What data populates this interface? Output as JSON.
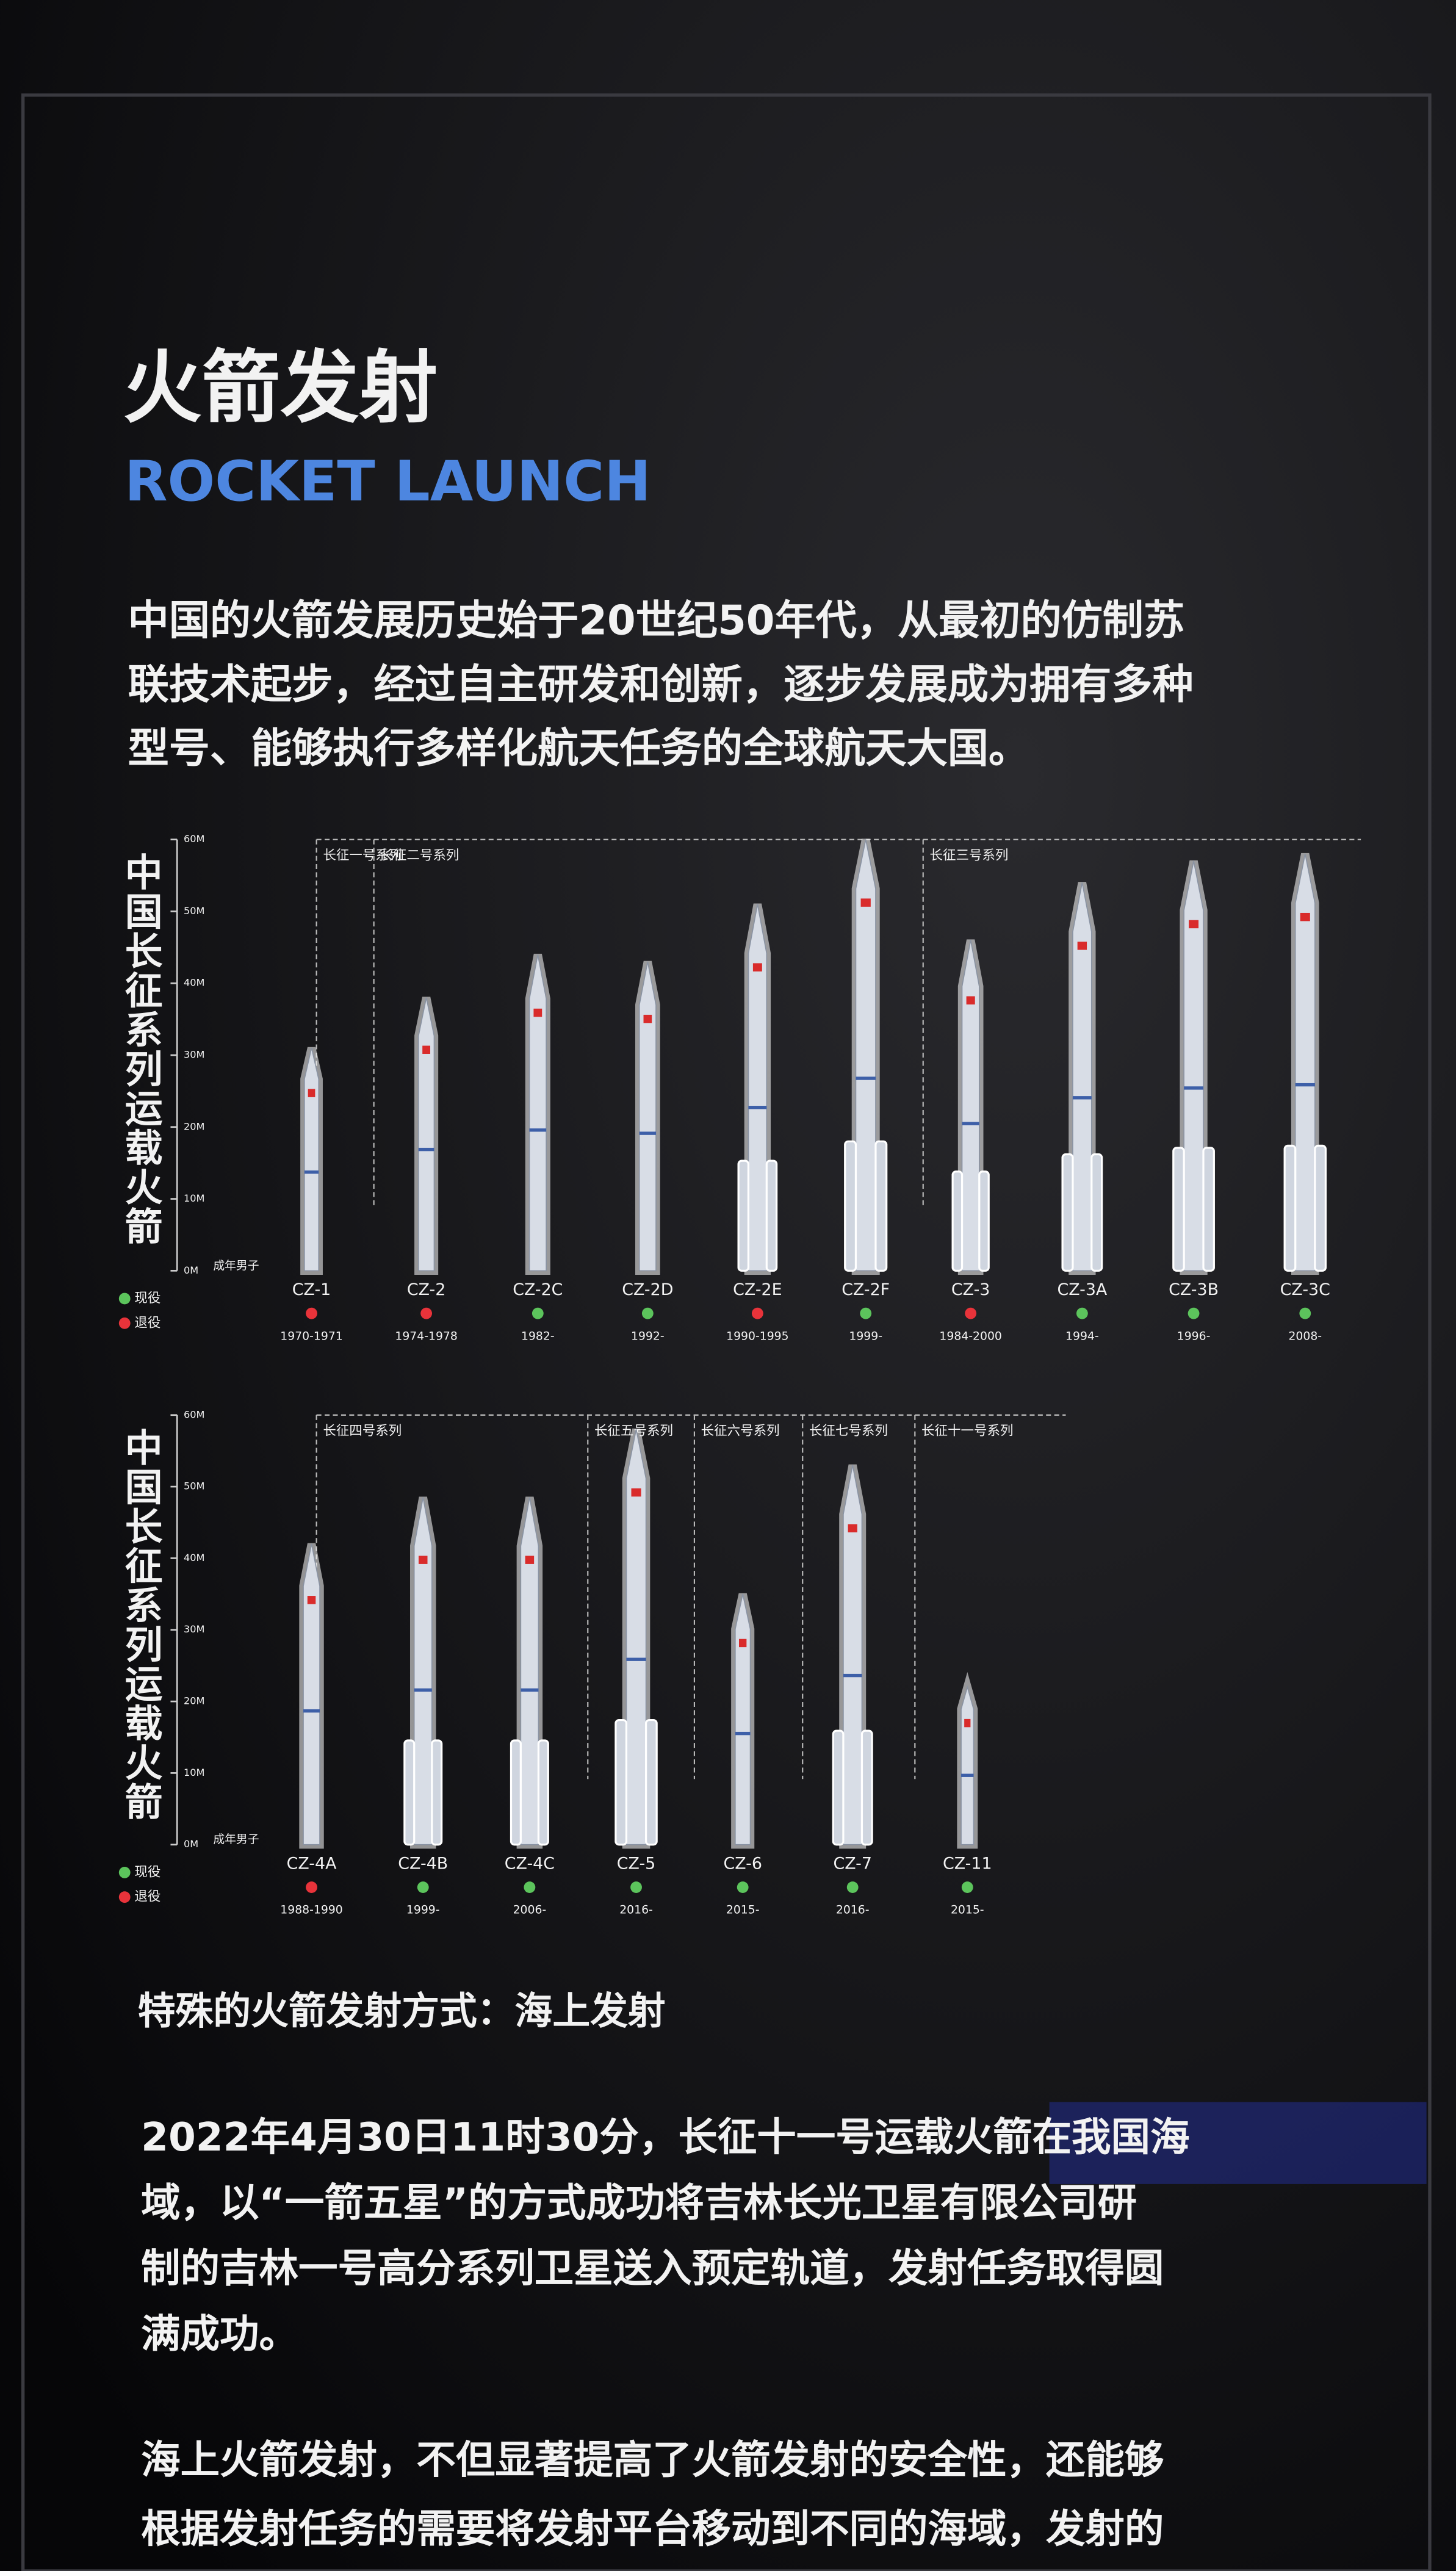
{
  "header": {
    "title": "火箭发射",
    "subtitle": "ROCKET LAUNCH"
  },
  "intro": [
    "中国的火箭发展历史始于20世纪50年代，从最初的仿制苏",
    "联技术起步，经过自主研发和创新，逐步发展成为拥有多种",
    "型号、能够执行多样化航天任务的全球航天大国。"
  ],
  "chart_data": [
    {
      "type": "bar",
      "axis_title": "中国长征系列运载火箭",
      "human_label": "成年男子",
      "legend": [
        {
          "label": "现役",
          "color": "#5cc45c"
        },
        {
          "label": "退役",
          "color": "#e8333a"
        }
      ],
      "ylim": [
        0,
        60
      ],
      "yticks": [
        {
          "value": 0,
          "label": "0M"
        },
        {
          "value": 10,
          "label": "10M"
        },
        {
          "value": 20,
          "label": "20M"
        },
        {
          "value": 30,
          "label": "30M"
        },
        {
          "value": 40,
          "label": "40M"
        },
        {
          "value": 50,
          "label": "50M"
        },
        {
          "value": 60,
          "label": "60M"
        }
      ],
      "groups": [
        "长征一号系列",
        "长征二号系列",
        "长征三号系列"
      ],
      "categories": [
        "CZ-1",
        "CZ-2",
        "CZ-2C",
        "CZ-2D",
        "CZ-2E",
        "CZ-2F",
        "CZ-3",
        "CZ-3A",
        "CZ-3B",
        "CZ-3C"
      ],
      "values": [
        31,
        38,
        44,
        43,
        51,
        60,
        46,
        54,
        57,
        58
      ],
      "years": [
        "1970-1971",
        "1974-1978",
        "1982-",
        "1992-",
        "1990-1995",
        "1999-",
        "1984-2000",
        "1994-",
        "1996-",
        "2008-"
      ],
      "dot_colors": [
        "#e8333a",
        "#e8333a",
        "#5cc45c",
        "#5cc45c",
        "#e8333a",
        "#5cc45c",
        "#e8333a",
        "#5cc45c",
        "#5cc45c",
        "#5cc45c"
      ]
    },
    {
      "type": "bar",
      "axis_title": "中国长征系列运载火箭",
      "human_label": "成年男子",
      "legend": [
        {
          "label": "现役",
          "color": "#5cc45c"
        },
        {
          "label": "退役",
          "color": "#e8333a"
        }
      ],
      "ylim": [
        0,
        60
      ],
      "yticks": [
        {
          "value": 0,
          "label": "0M"
        },
        {
          "value": 10,
          "label": "10M"
        },
        {
          "value": 20,
          "label": "20M"
        },
        {
          "value": 30,
          "label": "30M"
        },
        {
          "value": 40,
          "label": "40M"
        },
        {
          "value": 50,
          "label": "50M"
        },
        {
          "value": 60,
          "label": "60M"
        }
      ],
      "groups": [
        "长征四号系列",
        "长征五号系列",
        "长征六号系列",
        "长征七号系列",
        "长征十一号系列"
      ],
      "categories": [
        "CZ-4A",
        "CZ-4B",
        "CZ-4C",
        "CZ-5",
        "CZ-6",
        "CZ-7",
        "CZ-11"
      ],
      "values": [
        42,
        48.5,
        48.5,
        58,
        35,
        53,
        22
      ],
      "years": [
        "1988-1990",
        "1999-",
        "2006-",
        "2016-",
        "2015-",
        "2016-",
        "2015-"
      ],
      "dot_colors": [
        "#e8333a",
        "#5cc45c",
        "#5cc45c",
        "#5cc45c",
        "#5cc45c",
        "#5cc45c",
        "#5cc45c"
      ]
    }
  ],
  "section": {
    "title": "特殊的火箭发射方式：海上发射",
    "paragraph1": [
      "2022年4月30日11时30分，长征十一号运载火箭在我国海",
      "域，以“一箭五星”的方式成功将吉林长光卫星有限公司研",
      "制的吉林一号高分系列卫星送入预定轨道，发射任务取得圆",
      "满成功。"
    ],
    "paragraph2": [
      "海上火箭发射，不但显著提高了火箭发射的安全性，还能够",
      "根据发射任务的需要将发射平台移动到不同的海域，发射的"
    ]
  }
}
